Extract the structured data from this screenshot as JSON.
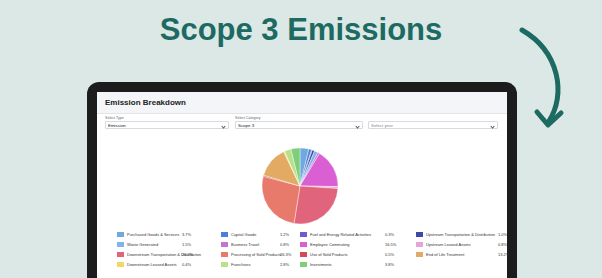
{
  "header": {
    "title": "Scope 3 Emissions"
  },
  "dashboard": {
    "title": "Emission Breakdown",
    "filters": [
      {
        "label": "Select Type",
        "value": "Emission"
      },
      {
        "label": "Select Category",
        "value": "Scope 3"
      },
      {
        "placeholder": "Select year"
      }
    ]
  },
  "chart_data": {
    "type": "pie",
    "categories": [
      "Purchased Goods & Services",
      "Capital Goods",
      "Fuel and Energy Related Activities",
      "Upstream Transportation & Distribution",
      "Waste Generated",
      "Business Travel",
      "Employee Commuting",
      "Upstream Leased Assets",
      "Downstream Transportation & Distribution",
      "Processing of Sold Products",
      "Use of Sold Products",
      "End of Life Treatment",
      "Downstream Leased Assets",
      "Franchises",
      "Investments"
    ],
    "values": [
      3.7,
      1.2,
      0.3,
      1.0,
      1.5,
      0.8,
      16.5,
      0.8,
      26.2,
      26.3,
      0.5,
      13.2,
      0.4,
      2.8,
      3.8
    ],
    "value_labels": [
      "3.7%",
      "1.2%",
      "0.3%",
      "1.0%",
      "1.5%",
      "0.8%",
      "16.5%",
      "0.8%",
      "26.2%",
      "26.3%",
      "0.5%",
      "13.2%",
      "0.4%",
      "2.8%",
      "3.8%"
    ],
    "colors": [
      "#6fa9dd",
      "#4c80d8",
      "#6a5fd2",
      "#3b4aa6",
      "#7fb6e6",
      "#c572d8",
      "#d95fd2",
      "#e9a3da",
      "#e0657c",
      "#e87a6c",
      "#d64a57",
      "#e2aa62",
      "#f1d862",
      "#b9e08b",
      "#7ecf7b"
    ]
  }
}
